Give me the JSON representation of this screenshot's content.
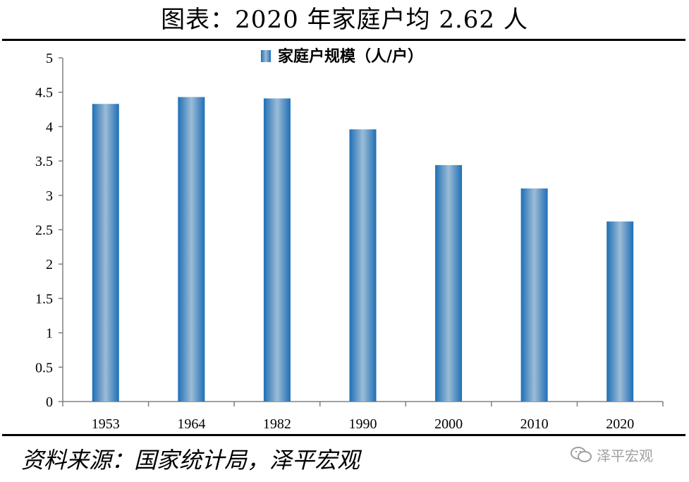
{
  "title": "图表：2020 年家庭户均 2.62 人",
  "source": "资料来源：国家统计局，泽平宏观",
  "watermark": "泽平宏观",
  "colors": {
    "bar_edge": "#1f6fb6",
    "bar_center": "#9dbcd6",
    "axis": "#808080"
  },
  "chart_data": {
    "type": "bar",
    "categories": [
      "1953",
      "1964",
      "1982",
      "1990",
      "2000",
      "2010",
      "2020"
    ],
    "series": [
      {
        "name": "家庭户规模（人/户）",
        "values": [
          4.33,
          4.43,
          4.41,
          3.96,
          3.44,
          3.1,
          2.62
        ]
      }
    ],
    "ylim": [
      0,
      5
    ],
    "yticks": [
      "0",
      "0.5",
      "1",
      "1.5",
      "2",
      "2.5",
      "3",
      "3.5",
      "4",
      "4.5",
      "5"
    ],
    "grid": false,
    "legend": "top-center"
  }
}
